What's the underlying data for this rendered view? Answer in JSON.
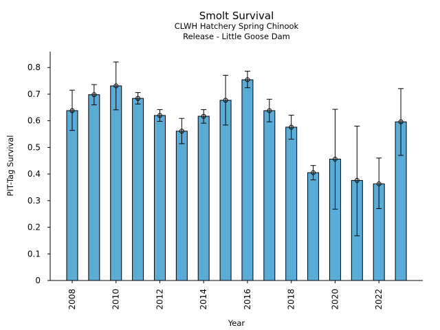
{
  "chart_data": {
    "type": "bar",
    "title": "Smolt Survival",
    "subtitle": [
      "CLWH Hatchery Spring Chinook",
      "Release - Little Goose Dam"
    ],
    "xlabel": "Year",
    "ylabel": "PIT-Tag Survival",
    "categories": [
      "2008",
      "2009",
      "2010",
      "2011",
      "2012",
      "2013",
      "2014",
      "2015",
      "2016",
      "2017",
      "2018",
      "2019",
      "2020",
      "2021",
      "2022",
      "2023"
    ],
    "x_tick_labels": [
      "2008",
      "2010",
      "2012",
      "2014",
      "2016",
      "2018",
      "2020",
      "2022"
    ],
    "values": [
      0.638,
      0.698,
      0.731,
      0.684,
      0.62,
      0.561,
      0.617,
      0.677,
      0.754,
      0.638,
      0.576,
      0.405,
      0.456,
      0.376,
      0.363,
      0.596
    ],
    "error_low": [
      0.564,
      0.66,
      0.641,
      0.663,
      0.598,
      0.514,
      0.591,
      0.584,
      0.724,
      0.596,
      0.531,
      0.378,
      0.268,
      0.168,
      0.27,
      0.47
    ],
    "error_high": [
      0.715,
      0.736,
      0.821,
      0.706,
      0.642,
      0.609,
      0.642,
      0.771,
      0.786,
      0.681,
      0.621,
      0.432,
      0.643,
      0.58,
      0.46,
      0.721
    ],
    "ylim": [
      0,
      0.86
    ],
    "y_ticks": [
      0,
      0.1,
      0.2,
      0.3,
      0.4,
      0.5,
      0.6,
      0.7,
      0.8
    ],
    "grid": false,
    "legend": "none",
    "bar_color": "#5aabd6",
    "edge_color": "#000000"
  }
}
